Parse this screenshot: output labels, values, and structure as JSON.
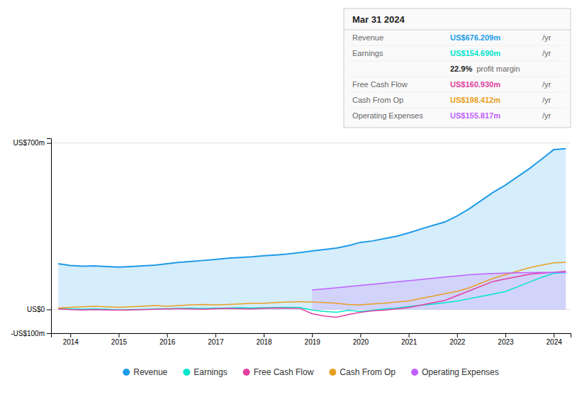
{
  "chart_data": {
    "type": "line",
    "title": "Mar 31 2024",
    "x": [
      2013.75,
      2014.0,
      2014.25,
      2014.5,
      2014.75,
      2015.0,
      2015.25,
      2015.5,
      2015.75,
      2016.0,
      2016.25,
      2016.5,
      2016.75,
      2017.0,
      2017.25,
      2017.5,
      2017.75,
      2018.0,
      2018.25,
      2018.5,
      2018.75,
      2019.0,
      2019.25,
      2019.5,
      2019.75,
      2020.0,
      2020.25,
      2020.5,
      2020.75,
      2021.0,
      2021.25,
      2021.5,
      2021.75,
      2022.0,
      2022.25,
      2022.5,
      2022.75,
      2023.0,
      2023.25,
      2023.5,
      2023.75,
      2024.0,
      2024.25
    ],
    "series": [
      {
        "name": "Revenue",
        "type": "area",
        "color": "#1e9be8",
        "values": [
          192,
          185,
          182,
          183,
          180,
          178,
          180,
          183,
          186,
          192,
          198,
          202,
          206,
          210,
          215,
          218,
          221,
          226,
          229,
          233,
          239,
          246,
          252,
          258,
          268,
          282,
          288,
          298,
          308,
          322,
          338,
          353,
          368,
          393,
          423,
          458,
          493,
          523,
          558,
          593,
          632,
          672,
          676
        ]
      },
      {
        "name": "Earnings",
        "type": "line",
        "color": "#00e5cc",
        "values": [
          3,
          2,
          1,
          2,
          1,
          -2,
          -1,
          0,
          2,
          3,
          4,
          5,
          4,
          5,
          6,
          7,
          6,
          7,
          8,
          9,
          8,
          -3,
          -8,
          -12,
          -4,
          -8,
          -4,
          2,
          6,
          12,
          18,
          22,
          28,
          35,
          45,
          55,
          65,
          75,
          95,
          115,
          135,
          152,
          154.69
        ]
      },
      {
        "name": "Free Cash Flow",
        "type": "line",
        "color": "#e040a0",
        "values": [
          2,
          -1,
          -2,
          -1,
          -2,
          -3,
          -2,
          -1,
          1,
          2,
          3,
          2,
          1,
          3,
          4,
          3,
          2,
          4,
          6,
          5,
          4,
          -18,
          -28,
          -33,
          -22,
          -12,
          -6,
          -3,
          2,
          8,
          18,
          28,
          38,
          58,
          78,
          98,
          118,
          128,
          138,
          148,
          153,
          156,
          160.93
        ]
      },
      {
        "name": "Cash From Op",
        "type": "line",
        "color": "#e8a020",
        "values": [
          6,
          9,
          11,
          13,
          11,
          9,
          11,
          13,
          16,
          13,
          16,
          19,
          21,
          19,
          21,
          23,
          26,
          26,
          29,
          31,
          33,
          31,
          29,
          26,
          21,
          19,
          23,
          26,
          31,
          36,
          46,
          56,
          66,
          76,
          91,
          111,
          131,
          146,
          161,
          176,
          186,
          196,
          198.412
        ]
      },
      {
        "name": "Operating Expenses",
        "type": "area",
        "color": "#c060ff",
        "values": [
          null,
          null,
          null,
          null,
          null,
          null,
          null,
          null,
          null,
          null,
          null,
          null,
          null,
          null,
          null,
          null,
          null,
          null,
          null,
          null,
          null,
          82,
          86,
          91,
          96,
          101,
          106,
          111,
          116,
          121,
          126,
          131,
          136,
          141,
          146,
          149,
          151,
          153,
          154,
          155,
          156,
          156,
          155.817
        ]
      }
    ],
    "xlim": [
      2013.6,
      2024.35
    ],
    "xticks": [
      2014,
      2015,
      2016,
      2017,
      2018,
      2019,
      2020,
      2021,
      2022,
      2023,
      2024
    ],
    "ylim": [
      -100,
      720
    ],
    "yticks": [
      {
        "value": -100,
        "label": "-US$100m"
      },
      {
        "value": 0,
        "label": "US$0"
      },
      {
        "value": 700,
        "label": "US$700m"
      }
    ],
    "grid": true,
    "legend": "bottom",
    "annotations": [
      {
        "label": "Revenue",
        "text": "US$676.209m",
        "suffix": "/yr"
      },
      {
        "label": "Earnings",
        "text": "US$154.690m",
        "suffix": "/yr"
      },
      {
        "text": "22.9%",
        "suffix": "profit margin"
      },
      {
        "label": "Free Cash Flow",
        "text": "US$160.930m",
        "suffix": "/yr"
      },
      {
        "label": "Cash From Op",
        "text": "US$198.412m",
        "suffix": "/yr"
      },
      {
        "label": "Operating Expenses",
        "text": "US$155.817m",
        "suffix": "/yr"
      }
    ]
  }
}
